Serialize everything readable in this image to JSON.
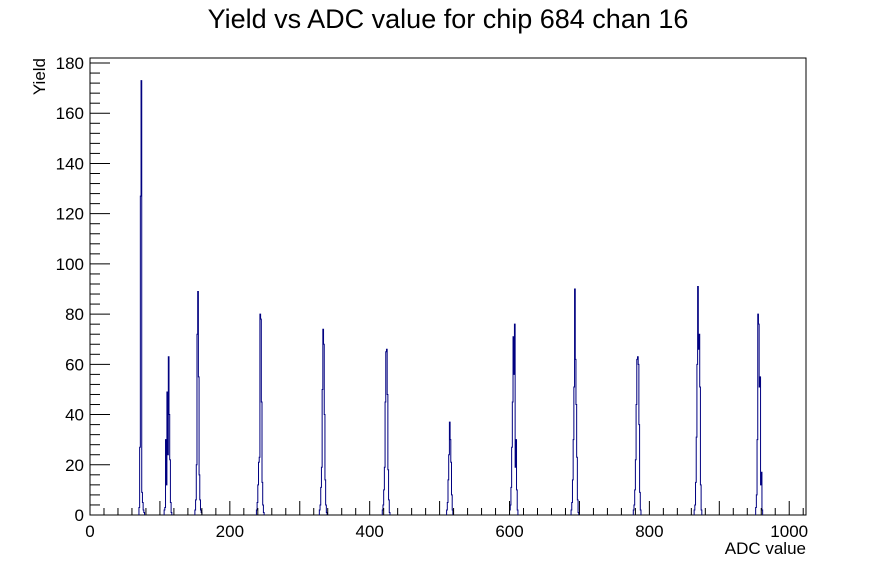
{
  "chart_data": {
    "type": "bar",
    "title": "Yield vs ADC value for chip 684 chan 16",
    "xlabel": "ADC value",
    "ylabel": "Yield",
    "xlim": [
      0,
      1024
    ],
    "ylim": [
      0,
      182
    ],
    "x_ticks": [
      0,
      200,
      400,
      600,
      800,
      1000
    ],
    "y_ticks": [
      0,
      20,
      40,
      60,
      80,
      100,
      120,
      140,
      160,
      180
    ],
    "grid": false,
    "legend": "none",
    "line_color": "#000080",
    "peaks": [
      {
        "x": [
          70,
          71,
          72,
          73,
          74,
          75,
          76,
          77
        ],
        "values": [
          3,
          27,
          127,
          173,
          9,
          5,
          2,
          1
        ]
      },
      {
        "x": [
          106,
          107,
          108,
          109,
          110,
          111,
          112,
          113,
          114,
          115,
          116
        ],
        "values": [
          2,
          3,
          30,
          12,
          49,
          24,
          63,
          40,
          22,
          5,
          1
        ]
      },
      {
        "x": [
          150,
          151,
          152,
          153,
          154,
          155,
          156,
          157,
          158,
          159
        ],
        "values": [
          2,
          6,
          20,
          72,
          89,
          55,
          16,
          6,
          2,
          1
        ]
      },
      {
        "x": [
          238,
          239,
          240,
          241,
          242,
          243,
          244,
          245,
          246,
          247,
          248
        ],
        "values": [
          2,
          5,
          12,
          21,
          23,
          80,
          78,
          45,
          13,
          4,
          1
        ]
      },
      {
        "x": [
          328,
          329,
          330,
          331,
          332,
          333,
          334,
          335,
          336,
          337,
          338
        ],
        "values": [
          2,
          4,
          11,
          19,
          50,
          74,
          68,
          40,
          14,
          4,
          1
        ]
      },
      {
        "x": [
          418,
          419,
          420,
          421,
          422,
          423,
          424,
          425,
          426,
          427,
          428
        ],
        "values": [
          2,
          4,
          10,
          19,
          45,
          65,
          66,
          48,
          18,
          6,
          1
        ]
      },
      {
        "x": [
          510,
          511,
          512,
          513,
          514,
          515,
          516,
          517,
          518
        ],
        "values": [
          2,
          5,
          14,
          24,
          37,
          30,
          21,
          8,
          2
        ]
      },
      {
        "x": [
          600,
          601,
          602,
          603,
          604,
          605,
          606,
          607,
          608,
          609,
          610,
          611
        ],
        "values": [
          2,
          4,
          11,
          27,
          45,
          71,
          56,
          76,
          19,
          30,
          10,
          2
        ]
      },
      {
        "x": [
          688,
          689,
          690,
          691,
          692,
          693,
          694,
          695,
          696,
          697,
          698
        ],
        "values": [
          2,
          5,
          14,
          30,
          51,
          90,
          62,
          44,
          23,
          6,
          1
        ]
      },
      {
        "x": [
          777,
          778,
          779,
          780,
          781,
          782,
          783,
          784,
          785,
          786,
          787
        ],
        "values": [
          2,
          4,
          10,
          22,
          44,
          62,
          63,
          60,
          36,
          9,
          2
        ]
      },
      {
        "x": [
          864,
          865,
          866,
          867,
          868,
          869,
          870,
          871,
          872,
          873,
          874
        ],
        "values": [
          2,
          4,
          13,
          31,
          60,
          91,
          66,
          72,
          51,
          12,
          2
        ]
      },
      {
        "x": [
          952,
          953,
          954,
          955,
          956,
          957,
          958,
          959,
          960,
          961
        ],
        "values": [
          3,
          8,
          30,
          80,
          76,
          51,
          55,
          12,
          17,
          2
        ]
      }
    ]
  }
}
